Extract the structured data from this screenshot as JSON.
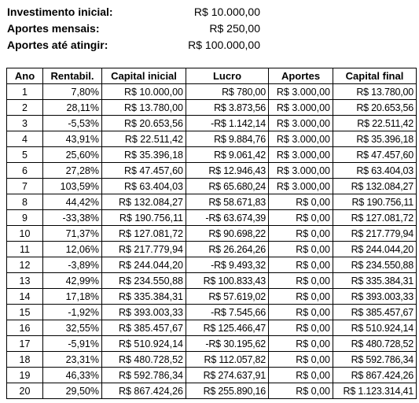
{
  "summary": {
    "initial_label": "Investimento inicial:",
    "initial_value": "R$ 10.000,00",
    "monthly_label": "Aportes mensais:",
    "monthly_value": "R$ 250,00",
    "target_label": "Aportes até atingir:",
    "target_value": "R$ 100.000,00"
  },
  "table": {
    "headers": [
      "Ano",
      "Rentabil.",
      "Capital inicial",
      "Lucro",
      "Aportes",
      "Capital final"
    ],
    "rows": [
      [
        "1",
        "7,80%",
        "R$ 10.000,00",
        "R$ 780,00",
        "R$ 3.000,00",
        "R$ 13.780,00"
      ],
      [
        "2",
        "28,11%",
        "R$ 13.780,00",
        "R$ 3.873,56",
        "R$ 3.000,00",
        "R$ 20.653,56"
      ],
      [
        "3",
        "-5,53%",
        "R$ 20.653,56",
        "-R$ 1.142,14",
        "R$ 3.000,00",
        "R$ 22.511,42"
      ],
      [
        "4",
        "43,91%",
        "R$ 22.511,42",
        "R$ 9.884,76",
        "R$ 3.000,00",
        "R$ 35.396,18"
      ],
      [
        "5",
        "25,60%",
        "R$ 35.396,18",
        "R$ 9.061,42",
        "R$ 3.000,00",
        "R$ 47.457,60"
      ],
      [
        "6",
        "27,28%",
        "R$ 47.457,60",
        "R$ 12.946,43",
        "R$ 3.000,00",
        "R$ 63.404,03"
      ],
      [
        "7",
        "103,59%",
        "R$ 63.404,03",
        "R$ 65.680,24",
        "R$ 3.000,00",
        "R$ 132.084,27"
      ],
      [
        "8",
        "44,42%",
        "R$ 132.084,27",
        "R$ 58.671,83",
        "R$ 0,00",
        "R$ 190.756,11"
      ],
      [
        "9",
        "-33,38%",
        "R$ 190.756,11",
        "-R$ 63.674,39",
        "R$ 0,00",
        "R$ 127.081,72"
      ],
      [
        "10",
        "71,37%",
        "R$ 127.081,72",
        "R$ 90.698,22",
        "R$ 0,00",
        "R$ 217.779,94"
      ],
      [
        "11",
        "12,06%",
        "R$ 217.779,94",
        "R$ 26.264,26",
        "R$ 0,00",
        "R$ 244.044,20"
      ],
      [
        "12",
        "-3,89%",
        "R$ 244.044,20",
        "-R$ 9.493,32",
        "R$ 0,00",
        "R$ 234.550,88"
      ],
      [
        "13",
        "42,99%",
        "R$ 234.550,88",
        "R$ 100.833,43",
        "R$ 0,00",
        "R$ 335.384,31"
      ],
      [
        "14",
        "17,18%",
        "R$ 335.384,31",
        "R$ 57.619,02",
        "R$ 0,00",
        "R$ 393.003,33"
      ],
      [
        "15",
        "-1,92%",
        "R$ 393.003,33",
        "-R$ 7.545,66",
        "R$ 0,00",
        "R$ 385.457,67"
      ],
      [
        "16",
        "32,55%",
        "R$ 385.457,67",
        "R$ 125.466,47",
        "R$ 0,00",
        "R$ 510.924,14"
      ],
      [
        "17",
        "-5,91%",
        "R$ 510.924,14",
        "-R$ 30.195,62",
        "R$ 0,00",
        "R$ 480.728,52"
      ],
      [
        "18",
        "23,31%",
        "R$ 480.728,52",
        "R$ 112.057,82",
        "R$ 0,00",
        "R$ 592.786,34"
      ],
      [
        "19",
        "46,33%",
        "R$ 592.786,34",
        "R$ 274.637,91",
        "R$ 0,00",
        "R$ 867.424,26"
      ],
      [
        "20",
        "29,50%",
        "R$ 867.424,26",
        "R$ 255.890,16",
        "R$ 0,00",
        "R$ 1.123.314,41"
      ]
    ]
  }
}
